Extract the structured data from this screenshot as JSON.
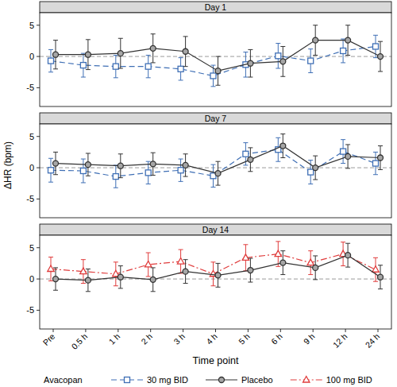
{
  "legend_title": "Avacopan",
  "chart_data": [
    {
      "type": "line",
      "title": "Day 1",
      "categories": [
        "Pre",
        "0.5 h",
        "1 h",
        "2 h",
        "3 h",
        "4 h",
        "5 h",
        "6 h",
        "9 h",
        "12 h",
        "24 h"
      ],
      "ylim": [
        -8,
        7
      ],
      "yticks": [
        -5,
        0,
        5
      ],
      "reference_line": 0,
      "tick_labels": "y",
      "legend": "bottom",
      "series": [
        {
          "name": "30 mg BID",
          "color": "#3f6fb5",
          "marker": "square",
          "line_style": "dashed",
          "values": [
            -0.7,
            -1.4,
            -1.6,
            -1.6,
            -2.0,
            -3.1,
            -1.3,
            0.1,
            -0.7,
            0.9,
            1.6
          ],
          "errors": [
            1.8,
            1.9,
            1.8,
            1.8,
            1.8,
            1.7,
            2.0,
            2.0,
            1.9,
            1.9,
            1.8
          ]
        },
        {
          "name": "Placebo",
          "color": "#333333",
          "marker": "circle",
          "line_style": "solid",
          "values": [
            0.3,
            0.3,
            0.5,
            1.3,
            0.8,
            -2.3,
            -1.1,
            -0.8,
            2.6,
            2.6,
            0.0
          ],
          "errors": [
            2.3,
            2.4,
            2.4,
            2.3,
            2.4,
            2.3,
            2.2,
            2.4,
            2.4,
            2.4,
            2.4
          ]
        }
      ]
    },
    {
      "type": "line",
      "title": "Day 7",
      "categories": [
        "Pre",
        "0.5 h",
        "1 h",
        "2 h",
        "3 h",
        "4 h",
        "5 h",
        "6 h",
        "9 h",
        "12 h",
        "24 h"
      ],
      "ylim": [
        -8,
        7
      ],
      "yticks": [
        -5,
        0,
        5
      ],
      "reference_line": 0,
      "tick_labels": "y",
      "legend": "bottom",
      "y_label": "ΔHR (bpm)",
      "series": [
        {
          "name": "30 mg BID",
          "color": "#3f6fb5",
          "marker": "square",
          "line_style": "dashed",
          "values": [
            -0.4,
            -0.5,
            -1.4,
            -0.8,
            -0.4,
            -1.3,
            2.2,
            2.9,
            -0.7,
            2.6,
            0.7
          ],
          "errors": [
            1.9,
            1.9,
            1.8,
            1.8,
            1.8,
            1.8,
            1.8,
            1.9,
            1.9,
            1.9,
            1.8
          ]
        },
        {
          "name": "Placebo",
          "color": "#333333",
          "marker": "circle",
          "line_style": "solid",
          "values": [
            0.7,
            0.5,
            0.3,
            0.6,
            0.4,
            -0.9,
            1.3,
            3.5,
            0.0,
            1.8,
            1.6
          ],
          "errors": [
            1.8,
            1.8,
            1.9,
            1.8,
            1.8,
            1.9,
            1.9,
            1.9,
            1.9,
            1.9,
            1.9
          ]
        }
      ]
    },
    {
      "type": "line",
      "title": "Day 14",
      "categories": [
        "Pre",
        "0.5 h",
        "1 h",
        "2 h",
        "3 h",
        "4 h",
        "5 h",
        "6 h",
        "9 h",
        "12 h",
        "24 h"
      ],
      "ylim": [
        -8,
        7
      ],
      "yticks": [
        -5,
        0,
        5
      ],
      "reference_line": 0,
      "legend": "bottom",
      "x_label": "Time point",
      "series": [
        {
          "name": "100 mg BID",
          "color": "#e03c3c",
          "marker": "triangle",
          "line_style": "dashdot",
          "values": [
            1.6,
            1.2,
            0.8,
            2.3,
            2.8,
            0.8,
            3.4,
            4.0,
            2.6,
            4.0,
            1.5
          ],
          "errors": [
            1.9,
            1.9,
            1.9,
            1.9,
            1.9,
            1.9,
            2.1,
            2.0,
            1.9,
            1.9,
            1.9
          ]
        },
        {
          "name": "Placebo",
          "color": "#333333",
          "marker": "circle",
          "line_style": "solid",
          "values": [
            0.0,
            -0.2,
            0.3,
            -0.1,
            1.2,
            0.6,
            1.4,
            2.6,
            1.8,
            3.8,
            0.3
          ],
          "errors": [
            1.8,
            1.8,
            1.8,
            1.9,
            1.9,
            1.9,
            1.9,
            1.9,
            1.9,
            1.9,
            1.9
          ]
        }
      ]
    }
  ]
}
